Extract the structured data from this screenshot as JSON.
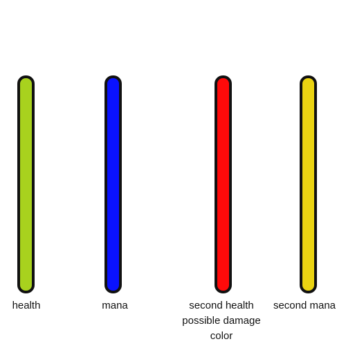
{
  "bars": [
    {
      "label": "health",
      "color": "#a8d21e"
    },
    {
      "label": "mana",
      "color": "#0a12ff"
    },
    {
      "label_lines": [
        "second health",
        "possible damage",
        "color"
      ],
      "color": "#ff0a0a"
    },
    {
      "label": "second mana",
      "color": "#ead312"
    }
  ]
}
